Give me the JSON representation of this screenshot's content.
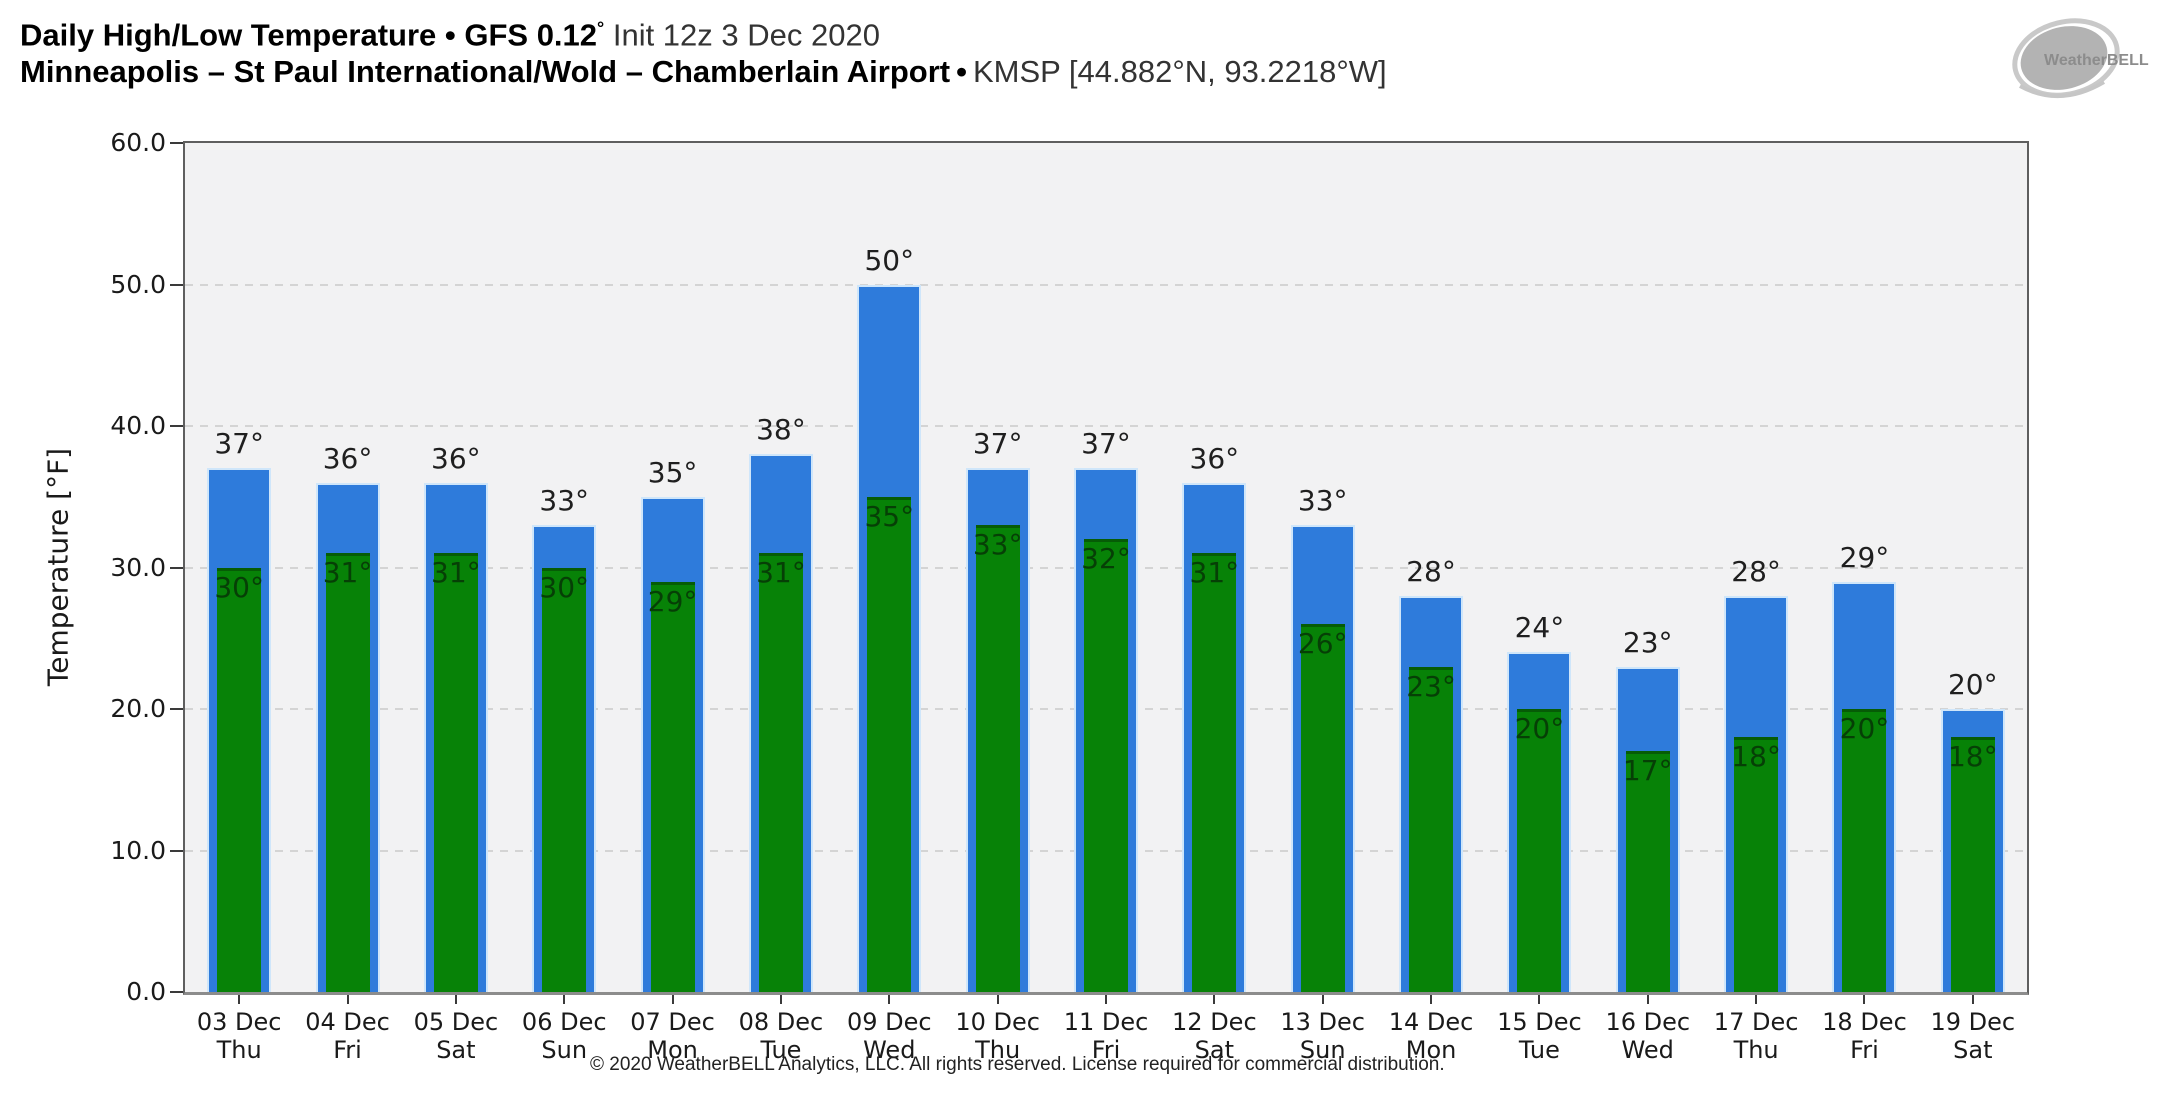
{
  "header": {
    "line1_bold": "Daily High/Low Temperature • GFS 0.12",
    "line1_degree": "°",
    "line1_regular": "Init 12z 3 Dec 2020",
    "line2_bold": "Minneapolis – St Paul International/Wold – Chamberlain Airport",
    "line2_bullet": "•",
    "line2_regular": "KMSP [44.882°N, 93.2218°W]"
  },
  "watermark": {
    "text": "WeatherBELL"
  },
  "footer": {
    "text": "© 2020 WeatherBELL Analytics, LLC. All rights reserved. License required for commercial distribution."
  },
  "chart_data": {
    "type": "bar",
    "title": "Daily High/Low Temperature • GFS 0.12° Init 12z 3 Dec 2020",
    "subtitle": "Minneapolis – St Paul International/Wold – Chamberlain Airport • KMSP [44.882°N, 93.2218°W]",
    "ylabel": "Temperature [°F]",
    "ylim": [
      0,
      60
    ],
    "ytick_values": [
      0,
      10,
      20,
      30,
      40,
      50,
      60
    ],
    "ytick_labels": [
      "0.0",
      "10.0",
      "20.0",
      "30.0",
      "40.0",
      "50.0",
      "60.0"
    ],
    "grid": "horizontal-dashed",
    "legend": "none",
    "unit": "°",
    "categories": [
      {
        "date": "03 Dec",
        "day": "Thu"
      },
      {
        "date": "04 Dec",
        "day": "Fri"
      },
      {
        "date": "05 Dec",
        "day": "Sat"
      },
      {
        "date": "06 Dec",
        "day": "Sun"
      },
      {
        "date": "07 Dec",
        "day": "Mon"
      },
      {
        "date": "08 Dec",
        "day": "Tue"
      },
      {
        "date": "09 Dec",
        "day": "Wed"
      },
      {
        "date": "10 Dec",
        "day": "Thu"
      },
      {
        "date": "11 Dec",
        "day": "Fri"
      },
      {
        "date": "12 Dec",
        "day": "Sat"
      },
      {
        "date": "13 Dec",
        "day": "Sun"
      },
      {
        "date": "14 Dec",
        "day": "Mon"
      },
      {
        "date": "15 Dec",
        "day": "Tue"
      },
      {
        "date": "16 Dec",
        "day": "Wed"
      },
      {
        "date": "17 Dec",
        "day": "Thu"
      },
      {
        "date": "18 Dec",
        "day": "Fri"
      },
      {
        "date": "19 Dec",
        "day": "Sat"
      }
    ],
    "series": [
      {
        "name": "High",
        "values": [
          37,
          36,
          36,
          33,
          35,
          38,
          50,
          37,
          37,
          36,
          33,
          28,
          24,
          23,
          28,
          29,
          20
        ]
      },
      {
        "name": "Low",
        "values": [
          30,
          31,
          31,
          30,
          29,
          31,
          35,
          33,
          32,
          31,
          26,
          23,
          20,
          17,
          18,
          20,
          18
        ]
      }
    ],
    "colors": {
      "high_bar": "#2e7bdb",
      "high_bar_edge": "#cfe6fa",
      "low_bar": "#078207",
      "low_bar_edge": "#065c06",
      "high_label": "#1f1f1f",
      "low_label": "#063f06",
      "plot_bg": "#f2f2f3",
      "grid": "#d4d4d4"
    }
  }
}
